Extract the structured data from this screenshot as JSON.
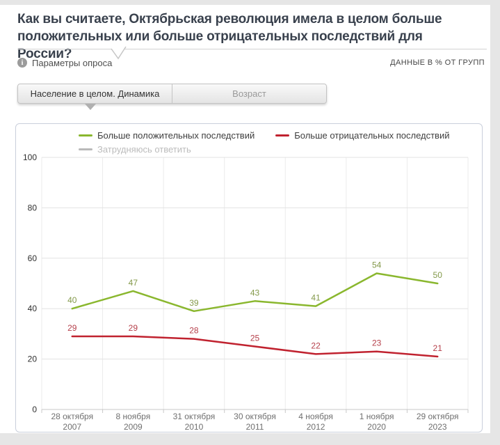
{
  "page": {
    "title": "Как вы считаете, Октябрьская революция имела в целом больше положительных или больше отрицательных последствий для России?",
    "params_label": "Параметры опроса",
    "info_icon": "i",
    "data_note": "ДАННЫЕ В % ОТ ГРУПП"
  },
  "tabs": [
    {
      "label": "Население в целом. Динамика",
      "active": true
    },
    {
      "label": "Возраст",
      "active": false
    }
  ],
  "chart_data": {
    "type": "line",
    "categories": [
      {
        "line1": "28 октября",
        "line2": "2007"
      },
      {
        "line1": "8 ноября",
        "line2": "2009"
      },
      {
        "line1": "31 октября",
        "line2": "2010"
      },
      {
        "line1": "30 октября",
        "line2": "2011"
      },
      {
        "line1": "4 ноября",
        "line2": "2012"
      },
      {
        "line1": "1 ноября",
        "line2": "2020"
      },
      {
        "line1": "29 октября",
        "line2": "2023"
      }
    ],
    "series": [
      {
        "name": "Больше положительных последствий",
        "color": "#8ab72e",
        "label_color": "#7c9440",
        "values": [
          40,
          47,
          39,
          43,
          41,
          54,
          50
        ]
      },
      {
        "name": "Больше отрицательных последствий",
        "color": "#c0222f",
        "label_color": "#b13540",
        "values": [
          29,
          29,
          28,
          25,
          22,
          23,
          21
        ]
      },
      {
        "name": "Затрудняюсь ответить",
        "color": "#b9b9b9",
        "label_color": "#b9b9b9",
        "values": [],
        "disabled": true
      }
    ],
    "title": "",
    "xlabel": "",
    "ylabel": "",
    "ylim": [
      0,
      100
    ],
    "yticks": [
      0,
      20,
      40,
      60,
      80,
      100
    ],
    "grid": true,
    "legend_position": "top",
    "units": "% от групп"
  }
}
